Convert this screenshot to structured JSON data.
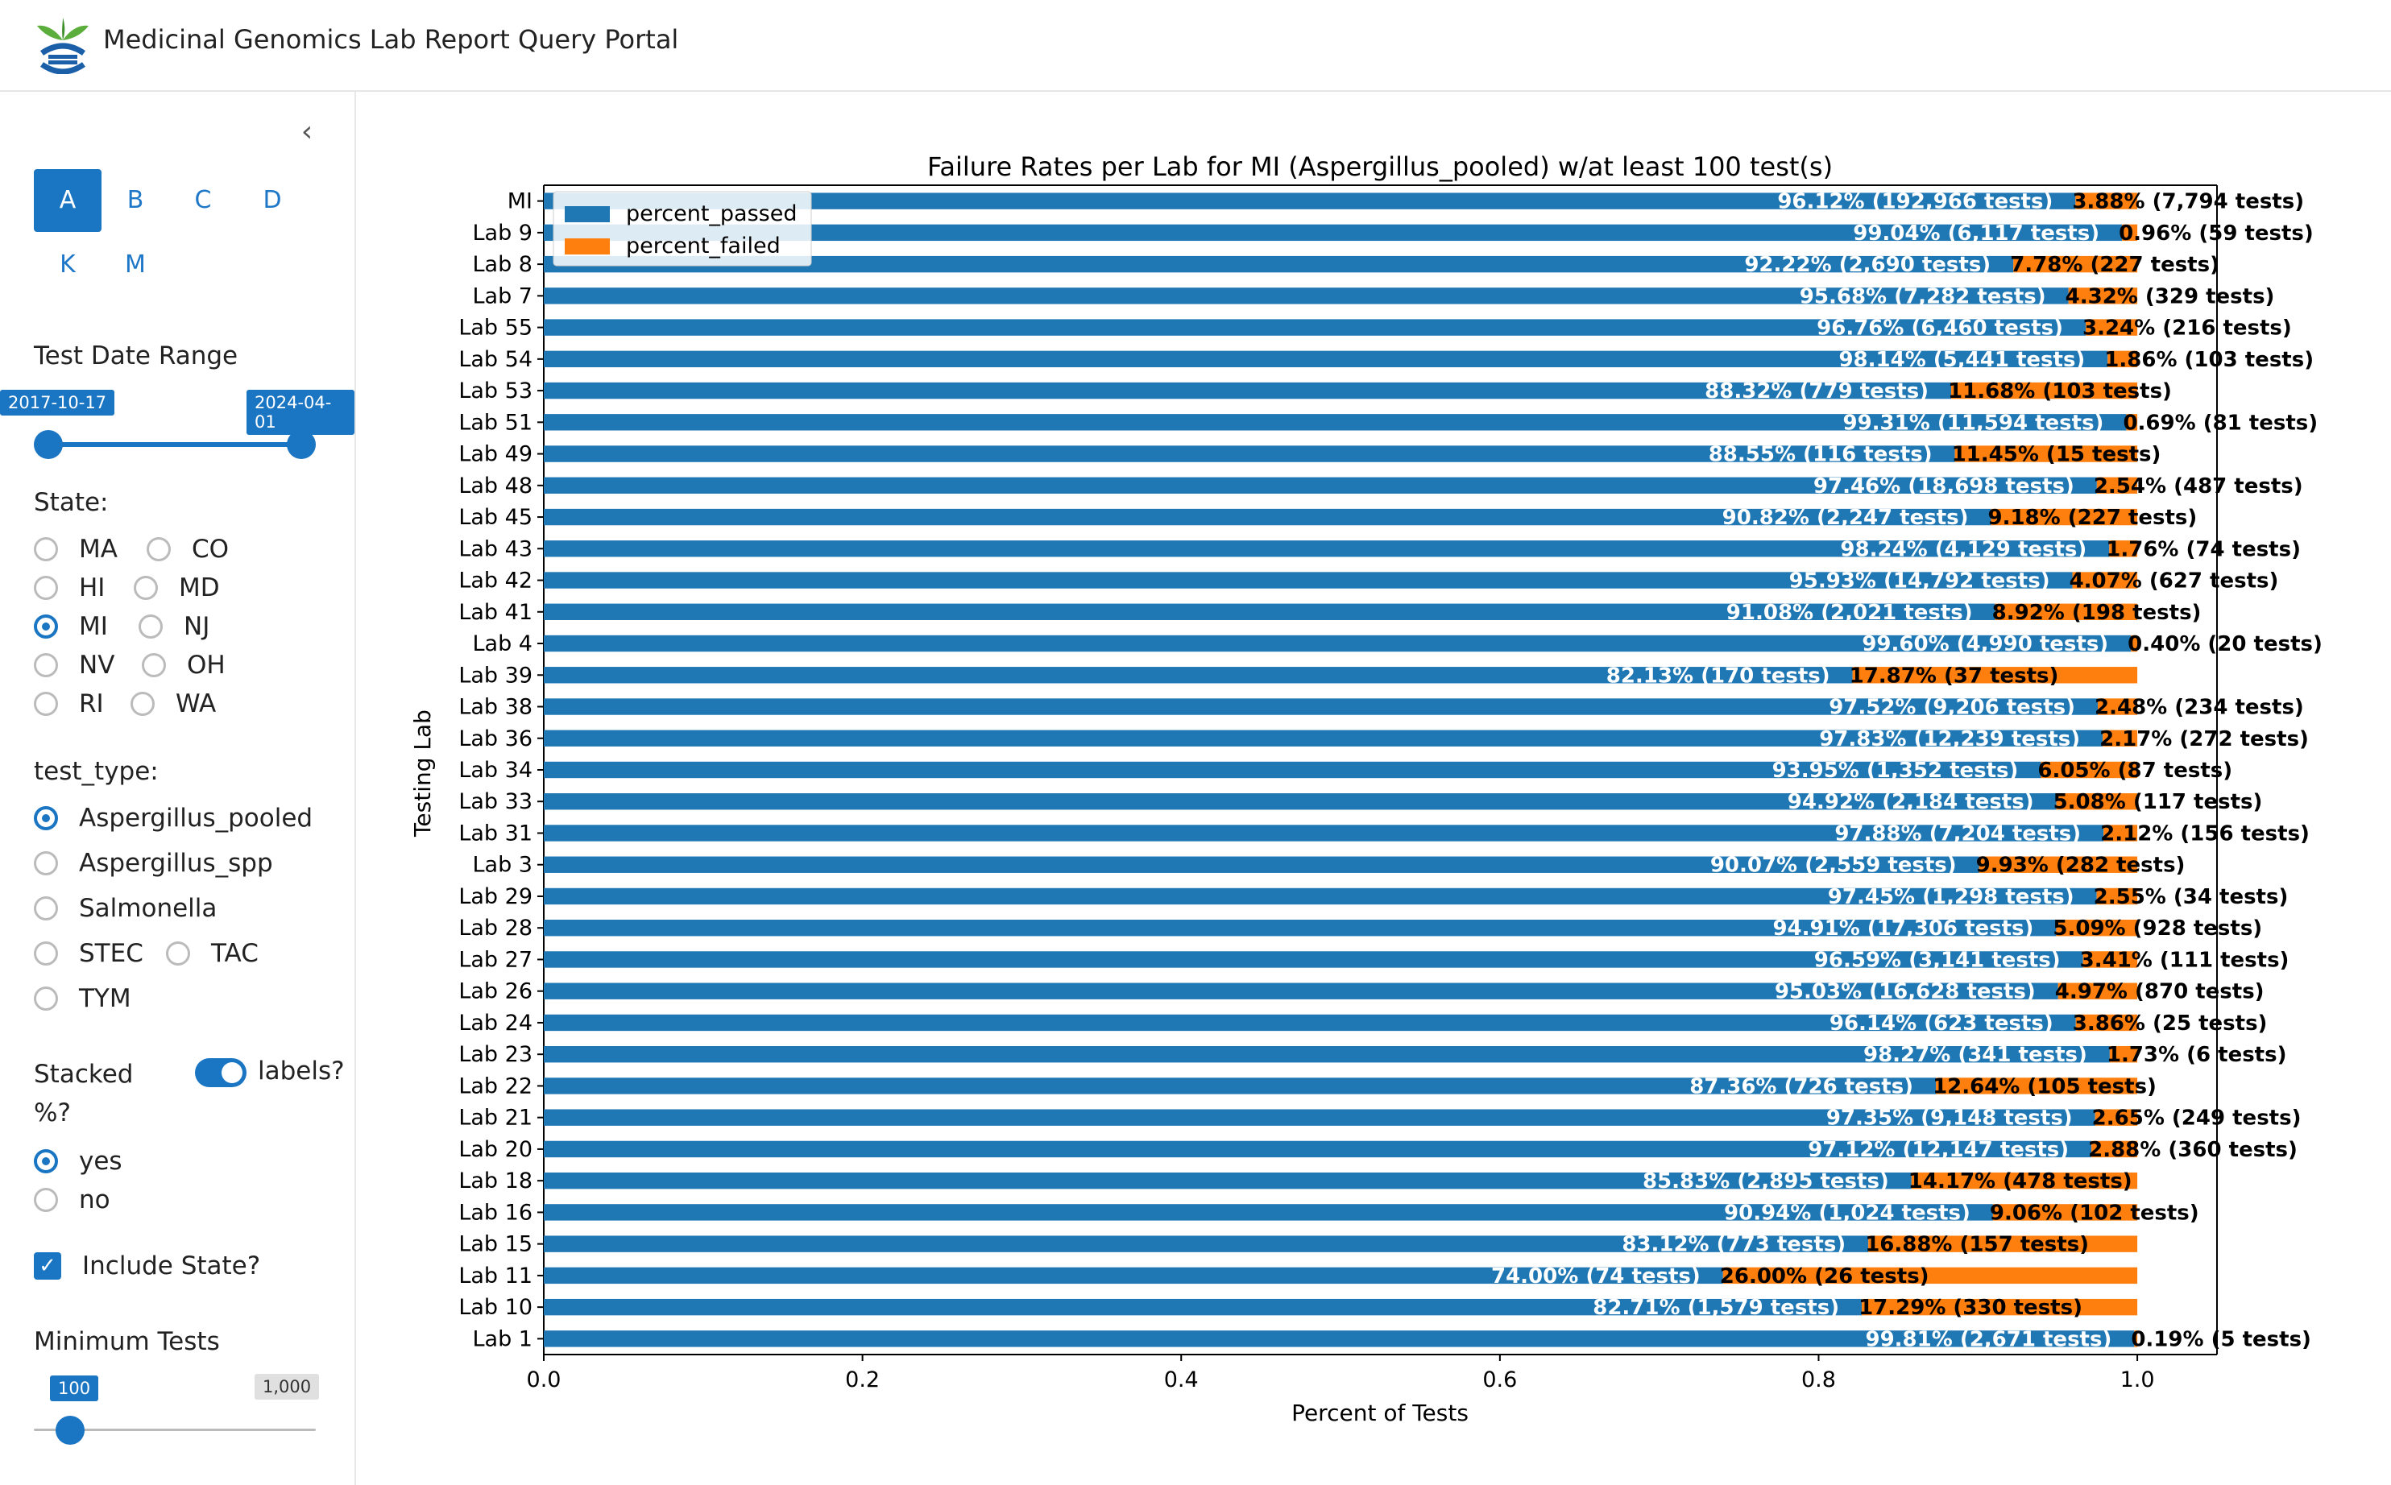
{
  "header": {
    "title": "Medicinal Genomics Lab Report Query Portal"
  },
  "sidebar": {
    "letter_tabs": [
      "A",
      "B",
      "C",
      "D",
      "K",
      "M"
    ],
    "active_letter": "A",
    "date_range": {
      "label": "Test Date Range",
      "start": "2017-10-17",
      "end": "2024-04-01"
    },
    "state": {
      "label": "State:",
      "options": [
        "MA",
        "CO",
        "HI",
        "MD",
        "MI",
        "NJ",
        "NV",
        "OH",
        "RI",
        "WA"
      ],
      "selected": "MI"
    },
    "test_type": {
      "label": "test_type:",
      "options": [
        "Aspergillus_pooled",
        "Aspergillus_spp",
        "Salmonella",
        "STEC",
        "TAC",
        "TYM"
      ],
      "selected": "Aspergillus_pooled"
    },
    "stacked": {
      "label": "Stacked %?",
      "toggle_label": "labels?",
      "toggle_on": true,
      "options": [
        "yes",
        "no"
      ],
      "selected": "yes"
    },
    "include_state": {
      "label": "Include State?",
      "checked": true
    },
    "min_tests": {
      "label": "Minimum Tests",
      "value": "100",
      "max": "1,000",
      "fraction": 0.1
    }
  },
  "chart_data": {
    "type": "bar",
    "orientation": "horizontal-stacked",
    "title": "Failure Rates per Lab for MI (Aspergillus_pooled) w/at least 100 test(s)",
    "xlabel": "Percent of Tests",
    "ylabel": "Testing Lab",
    "xlim": [
      0,
      1.05
    ],
    "xticks": [
      "0.0",
      "0.2",
      "0.4",
      "0.6",
      "0.8",
      "1.0"
    ],
    "legend": {
      "placement": "top-left",
      "entries": [
        "percent_passed",
        "percent_failed"
      ]
    },
    "colors": {
      "passed": "#1f77b4",
      "failed": "#ff7f0e"
    },
    "categories": [
      "MI",
      "Lab 9",
      "Lab 8",
      "Lab 7",
      "Lab 55",
      "Lab 54",
      "Lab 53",
      "Lab 51",
      "Lab 49",
      "Lab 48",
      "Lab 45",
      "Lab 43",
      "Lab 42",
      "Lab 41",
      "Lab 4",
      "Lab 39",
      "Lab 38",
      "Lab 36",
      "Lab 34",
      "Lab 33",
      "Lab 31",
      "Lab 3",
      "Lab 29",
      "Lab 28",
      "Lab 27",
      "Lab 26",
      "Lab 24",
      "Lab 23",
      "Lab 22",
      "Lab 21",
      "Lab 20",
      "Lab 18",
      "Lab 16",
      "Lab 15",
      "Lab 11",
      "Lab 10",
      "Lab 1"
    ],
    "series": [
      {
        "name": "percent_passed",
        "values": [
          0.9612,
          0.9904,
          0.9222,
          0.9568,
          0.9676,
          0.9814,
          0.8832,
          0.9931,
          0.8855,
          0.9746,
          0.9082,
          0.9824,
          0.9593,
          0.9108,
          0.996,
          0.8213,
          0.9752,
          0.9783,
          0.9395,
          0.9492,
          0.9788,
          0.9007,
          0.9745,
          0.9491,
          0.9659,
          0.9503,
          0.9614,
          0.9827,
          0.8736,
          0.9735,
          0.9712,
          0.8583,
          0.9094,
          0.8312,
          0.74,
          0.8271,
          0.9981
        ],
        "labels": [
          "96.12% (192,966 tests)",
          "99.04% (6,117 tests)",
          "92.22% (2,690 tests)",
          "95.68% (7,282 tests)",
          "96.76% (6,460 tests)",
          "98.14% (5,441 tests)",
          "88.32% (779 tests)",
          "99.31% (11,594 tests)",
          "88.55% (116 tests)",
          "97.46% (18,698 tests)",
          "90.82% (2,247 tests)",
          "98.24% (4,129 tests)",
          "95.93% (14,792 tests)",
          "91.08% (2,021 tests)",
          "99.60% (4,990 tests)",
          "82.13% (170 tests)",
          "97.52% (9,206 tests)",
          "97.83% (12,239 tests)",
          "93.95% (1,352 tests)",
          "94.92% (2,184 tests)",
          "97.88% (7,204 tests)",
          "90.07% (2,559 tests)",
          "97.45% (1,298 tests)",
          "94.91% (17,306 tests)",
          "96.59% (3,141 tests)",
          "95.03% (16,628 tests)",
          "96.14% (623 tests)",
          "98.27% (341 tests)",
          "87.36% (726 tests)",
          "97.35% (9,148 tests)",
          "97.12% (12,147 tests)",
          "85.83% (2,895 tests)",
          "90.94% (1,024 tests)",
          "83.12% (773 tests)",
          "74.00% (74 tests)",
          "82.71% (1,579 tests)",
          "99.81% (2,671 tests)"
        ]
      },
      {
        "name": "percent_failed",
        "values": [
          0.0388,
          0.0096,
          0.0778,
          0.0432,
          0.0324,
          0.0186,
          0.1168,
          0.0069,
          0.1145,
          0.0254,
          0.0918,
          0.0176,
          0.0407,
          0.0892,
          0.004,
          0.1787,
          0.0248,
          0.0217,
          0.0605,
          0.0508,
          0.0212,
          0.0993,
          0.0255,
          0.0509,
          0.0341,
          0.0497,
          0.0386,
          0.0173,
          0.1264,
          0.0265,
          0.0288,
          0.1417,
          0.0906,
          0.1688,
          0.26,
          0.1729,
          0.0019
        ],
        "labels": [
          "3.88% (7,794 tests)",
          "0.96% (59 tests)",
          "7.78% (227 tests)",
          "4.32% (329 tests)",
          "3.24% (216 tests)",
          "1.86% (103 tests)",
          "11.68% (103 tests)",
          "0.69% (81 tests)",
          "11.45% (15 tests)",
          "2.54% (487 tests)",
          "9.18% (227 tests)",
          "1.76% (74 tests)",
          "4.07% (627 tests)",
          "8.92% (198 tests)",
          "0.40% (20 tests)",
          "17.87% (37 tests)",
          "2.48% (234 tests)",
          "2.17% (272 tests)",
          "6.05% (87 tests)",
          "5.08% (117 tests)",
          "2.12% (156 tests)",
          "9.93% (282 tests)",
          "2.55% (34 tests)",
          "5.09% (928 tests)",
          "3.41% (111 tests)",
          "4.97% (870 tests)",
          "3.86% (25 tests)",
          "1.73% (6 tests)",
          "12.64% (105 tests)",
          "2.65% (249 tests)",
          "2.88% (360 tests)",
          "14.17% (478 tests)",
          "9.06% (102 tests)",
          "16.88% (157 tests)",
          "26.00% (26 tests)",
          "17.29% (330 tests)",
          "0.19% (5 tests)"
        ]
      }
    ]
  }
}
